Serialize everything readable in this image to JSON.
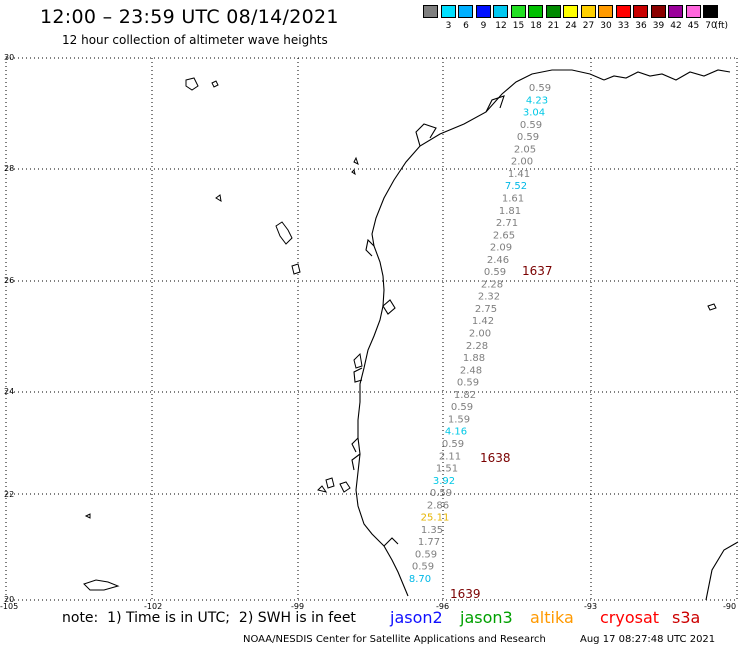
{
  "header": {
    "title": "12:00 – 23:59 UTC 08/14/2021",
    "subtitle": "12 hour collection of altimeter wave heights"
  },
  "legend": {
    "unit": "(ft)",
    "bins": [
      {
        "label": "",
        "color": "#7f7f7f"
      },
      {
        "label": "3",
        "color": "#00e0ff"
      },
      {
        "label": "6",
        "color": "#00b0ff"
      },
      {
        "label": "9",
        "color": "#0010ff"
      },
      {
        "label": "12",
        "color": "#00c8f0"
      },
      {
        "label": "15",
        "color": "#22e022"
      },
      {
        "label": "18",
        "color": "#00c000"
      },
      {
        "label": "21",
        "color": "#008a00"
      },
      {
        "label": "24",
        "color": "#ffff00"
      },
      {
        "label": "27",
        "color": "#ffd000"
      },
      {
        "label": "30",
        "color": "#ff9a00"
      },
      {
        "label": "33",
        "color": "#ff0000"
      },
      {
        "label": "36",
        "color": "#c80000"
      },
      {
        "label": "39",
        "color": "#8a0000"
      },
      {
        "label": "42",
        "color": "#9a009a"
      },
      {
        "label": "45",
        "color": "#ff66dd"
      },
      {
        "label": "70",
        "color": "#000000"
      }
    ]
  },
  "axes": {
    "lat_labels": [
      "30",
      "28",
      "26",
      "24",
      "22",
      "20"
    ],
    "lon_labels": [
      "-105",
      "-102",
      "-99",
      "-96",
      "-93",
      "-90"
    ]
  },
  "measurements": [
    {
      "value": "0.59",
      "color": "#7f7f7f"
    },
    {
      "value": "4.23",
      "color": "#00c8e6"
    },
    {
      "value": "3.04",
      "color": "#00c8e6"
    },
    {
      "value": "0.59",
      "color": "#7f7f7f"
    },
    {
      "value": "0.59",
      "color": "#7f7f7f"
    },
    {
      "value": "2.05",
      "color": "#7f7f7f"
    },
    {
      "value": "2.00",
      "color": "#7f7f7f"
    },
    {
      "value": "1.41",
      "color": "#7f7f7f"
    },
    {
      "value": "7.52",
      "color": "#00b8e6"
    },
    {
      "value": "1.61",
      "color": "#7f7f7f"
    },
    {
      "value": "1.81",
      "color": "#7f7f7f"
    },
    {
      "value": "2.71",
      "color": "#7f7f7f"
    },
    {
      "value": "2.65",
      "color": "#7f7f7f"
    },
    {
      "value": "2.09",
      "color": "#7f7f7f"
    },
    {
      "value": "2.46",
      "color": "#7f7f7f"
    },
    {
      "value": "0.59",
      "color": "#7f7f7f"
    },
    {
      "value": "2.28",
      "color": "#7f7f7f"
    },
    {
      "value": "2.32",
      "color": "#7f7f7f"
    },
    {
      "value": "2.75",
      "color": "#7f7f7f"
    },
    {
      "value": "1.42",
      "color": "#7f7f7f"
    },
    {
      "value": "2.00",
      "color": "#7f7f7f"
    },
    {
      "value": "2.28",
      "color": "#7f7f7f"
    },
    {
      "value": "1.88",
      "color": "#7f7f7f"
    },
    {
      "value": "2.48",
      "color": "#7f7f7f"
    },
    {
      "value": "0.59",
      "color": "#7f7f7f"
    },
    {
      "value": "1.82",
      "color": "#7f7f7f"
    },
    {
      "value": "0.59",
      "color": "#7f7f7f"
    },
    {
      "value": "1.59",
      "color": "#7f7f7f"
    },
    {
      "value": "4.16",
      "color": "#00c8e6"
    },
    {
      "value": "0.59",
      "color": "#7f7f7f"
    },
    {
      "value": "2.11",
      "color": "#7f7f7f"
    },
    {
      "value": "1.51",
      "color": "#7f7f7f"
    },
    {
      "value": "3.92",
      "color": "#00c8e6"
    },
    {
      "value": "0.59",
      "color": "#7f7f7f"
    },
    {
      "value": "2.86",
      "color": "#7f7f7f"
    },
    {
      "value": "25.11",
      "color": "#e6b400"
    },
    {
      "value": "1.35",
      "color": "#7f7f7f"
    },
    {
      "value": "1.77",
      "color": "#7f7f7f"
    },
    {
      "value": "0.59",
      "color": "#7f7f7f"
    },
    {
      "value": "0.59",
      "color": "#7f7f7f"
    },
    {
      "value": "8.70",
      "color": "#00b8e6"
    }
  ],
  "passes": [
    "1637",
    "1638",
    "1639"
  ],
  "footer": {
    "note": "note:  1) Time is in UTC;  2) SWH is in feet",
    "satellites": [
      {
        "name": "jason2",
        "color": "#1010ff"
      },
      {
        "name": "jason3",
        "color": "#00a000"
      },
      {
        "name": "altika",
        "color": "#ff9900"
      },
      {
        "name": "cryosat",
        "color": "#ff0000"
      },
      {
        "name": "s3a",
        "color": "#cc0000"
      }
    ],
    "credit": "NOAA/NESDIS Center for Satellite Applications and Research",
    "timestamp": "Aug 17 08:27:48 UTC 2021"
  }
}
